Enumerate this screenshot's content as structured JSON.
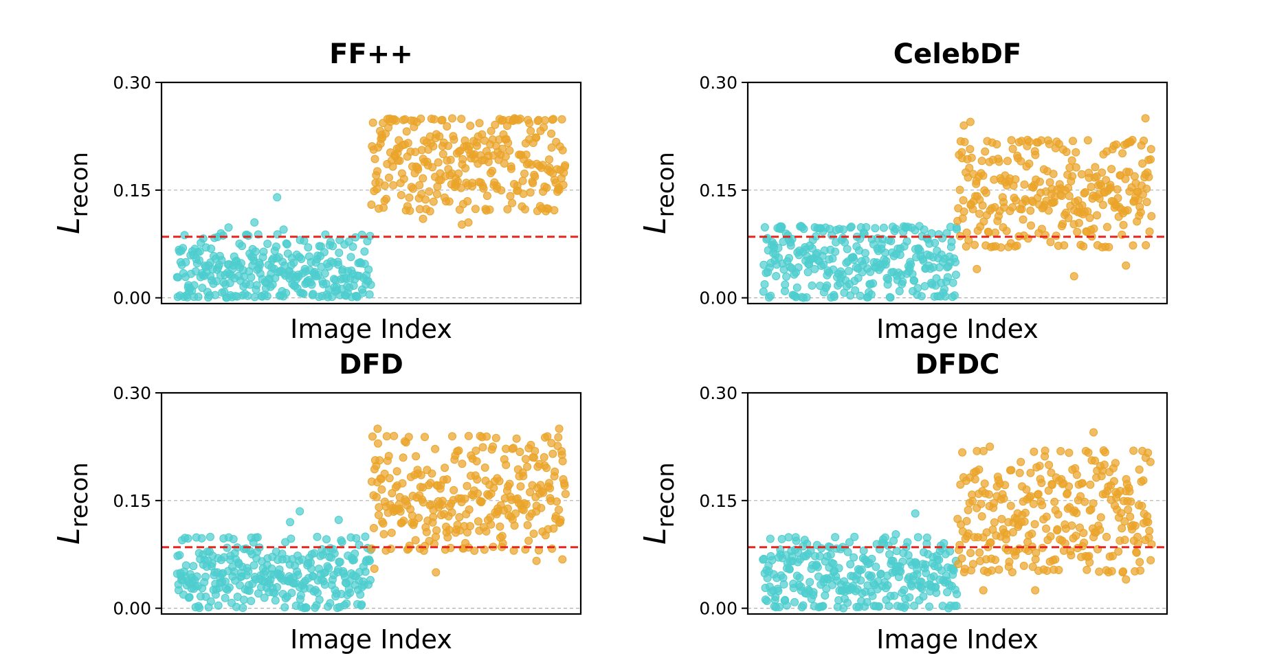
{
  "chart_data": [
    {
      "type": "scatter",
      "title": "FF++",
      "xlabel": "Image Index",
      "ylabel": "L",
      "ylabel_subscript": "recon",
      "ylim": [
        -0.008,
        0.3
      ],
      "yticks": [
        "0.00",
        "0.15",
        "0.30"
      ],
      "grid": "y dashed gray",
      "threshold": 0.085,
      "series": [
        {
          "color": "#4ECDCE",
          "n": 300,
          "x_range": [
            0,
            300
          ],
          "y_range": [
            0.0,
            0.09
          ],
          "center": 0.035,
          "outliers": [
            [
              155,
              0.14
            ],
            [
              120,
              0.105
            ],
            [
              80,
              0.098
            ],
            [
              165,
              0.095
            ]
          ]
        },
        {
          "color": "#EAA42A",
          "n": 300,
          "x_range": [
            300,
            600
          ],
          "y_range": [
            0.12,
            0.25
          ],
          "center": 0.19,
          "outliers": [
            [
              380,
              0.11
            ],
            [
              440,
              0.102
            ],
            [
              450,
              0.105
            ]
          ]
        }
      ]
    },
    {
      "type": "scatter",
      "title": "CelebDF",
      "xlabel": "Image Index",
      "ylabel": "L",
      "ylabel_subscript": "recon",
      "ylim": [
        -0.008,
        0.3
      ],
      "yticks": [
        "0.00",
        "0.15",
        "0.30"
      ],
      "grid": "y dashed gray",
      "threshold": 0.085,
      "series": [
        {
          "color": "#4ECDCE",
          "n": 300,
          "x_range": [
            0,
            300
          ],
          "y_range": [
            0.0,
            0.1
          ],
          "center": 0.05,
          "outliers": []
        },
        {
          "color": "#EAA42A",
          "n": 300,
          "x_range": [
            300,
            600
          ],
          "y_range": [
            0.07,
            0.22
          ],
          "center": 0.145,
          "outliers": [
            [
              310,
              0.24
            ],
            [
              320,
              0.245
            ],
            [
              590,
              0.25
            ],
            [
              480,
              0.03
            ],
            [
              560,
              0.045
            ],
            [
              330,
              0.04
            ]
          ]
        }
      ]
    },
    {
      "type": "scatter",
      "title": "DFD",
      "xlabel": "Image Index",
      "ylabel": "L",
      "ylabel_subscript": "recon",
      "ylim": [
        -0.008,
        0.3
      ],
      "yticks": [
        "0.00",
        "0.15",
        "0.30"
      ],
      "grid": "y dashed gray",
      "threshold": 0.085,
      "series": [
        {
          "color": "#4ECDCE",
          "n": 300,
          "x_range": [
            0,
            300
          ],
          "y_range": [
            0.0,
            0.1
          ],
          "center": 0.045,
          "outliers": [
            [
              190,
              0.135
            ],
            [
              250,
              0.123
            ],
            [
              175,
              0.12
            ]
          ]
        },
        {
          "color": "#EAA42A",
          "n": 300,
          "x_range": [
            300,
            600
          ],
          "y_range": [
            0.08,
            0.24
          ],
          "center": 0.155,
          "outliers": [
            [
              310,
              0.25
            ],
            [
              590,
              0.25
            ],
            [
              400,
              0.05
            ],
            [
              555,
              0.066
            ],
            [
              595,
              0.068
            ],
            [
              305,
              0.055
            ]
          ]
        }
      ]
    },
    {
      "type": "scatter",
      "title": "DFDC",
      "xlabel": "Image Index",
      "ylabel": "L",
      "ylabel_subscript": "recon",
      "ylim": [
        -0.008,
        0.3
      ],
      "yticks": [
        "0.00",
        "0.15",
        "0.30"
      ],
      "grid": "y dashed gray",
      "threshold": 0.085,
      "series": [
        {
          "color": "#4ECDCE",
          "n": 300,
          "x_range": [
            0,
            300
          ],
          "y_range": [
            0.0,
            0.1
          ],
          "center": 0.045,
          "outliers": [
            [
              235,
              0.132
            ],
            [
              205,
              0.103
            ]
          ]
        },
        {
          "color": "#EAA42A",
          "n": 300,
          "x_range": [
            300,
            600
          ],
          "y_range": [
            0.05,
            0.22
          ],
          "center": 0.13,
          "outliers": [
            [
              510,
              0.245
            ],
            [
              350,
              0.225
            ],
            [
              420,
              0.025
            ],
            [
              340,
              0.025
            ],
            [
              560,
              0.04
            ]
          ]
        }
      ]
    }
  ]
}
